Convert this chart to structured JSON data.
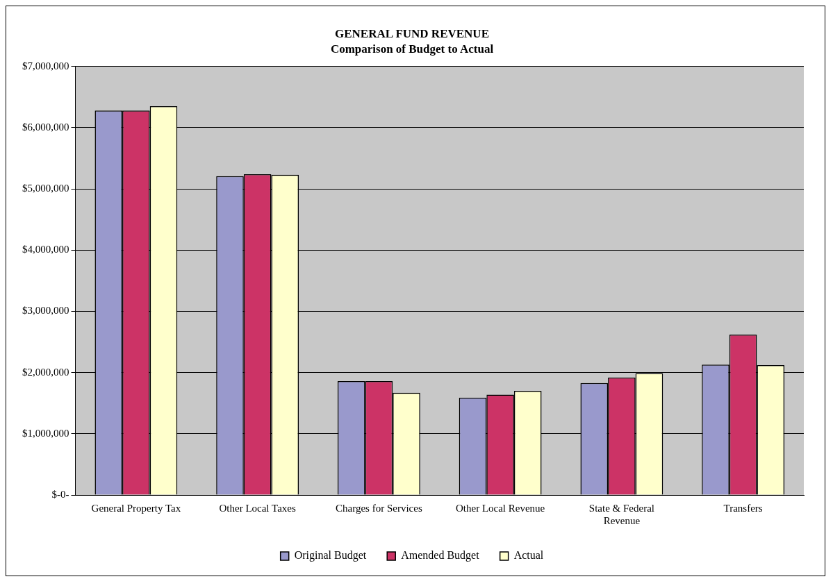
{
  "chart_data": {
    "type": "bar",
    "title": "GENERAL FUND REVENUE",
    "subtitle": "Comparison of Budget to Actual",
    "categories": [
      "General Property Tax",
      "Other Local Taxes",
      "Charges for Services",
      "Other Local Revenue",
      "State & Federal Revenue",
      "Transfers"
    ],
    "series": [
      {
        "name": "Original Budget",
        "color": "#9999cc",
        "values": [
          6280000,
          5210000,
          1860000,
          1590000,
          1830000,
          2130000
        ]
      },
      {
        "name": "Amended Budget",
        "color": "#cc3366",
        "values": [
          6280000,
          5240000,
          1860000,
          1640000,
          1920000,
          2620000
        ]
      },
      {
        "name": "Actual",
        "color": "#ffffcc",
        "values": [
          6350000,
          5230000,
          1670000,
          1700000,
          1990000,
          2120000
        ]
      }
    ],
    "ylim": [
      0,
      7000000
    ],
    "yticks": [
      {
        "value": 0,
        "label": "$-0-"
      },
      {
        "value": 1000000,
        "label": "$1,000,000"
      },
      {
        "value": 2000000,
        "label": "$2,000,000"
      },
      {
        "value": 3000000,
        "label": "$3,000,000"
      },
      {
        "value": 4000000,
        "label": "$4,000,000"
      },
      {
        "value": 5000000,
        "label": "$5,000,000"
      },
      {
        "value": 6000000,
        "label": "$6,000,000"
      },
      {
        "value": 7000000,
        "label": "$7,000,000"
      }
    ],
    "grid": "y",
    "legend": "bottom"
  }
}
